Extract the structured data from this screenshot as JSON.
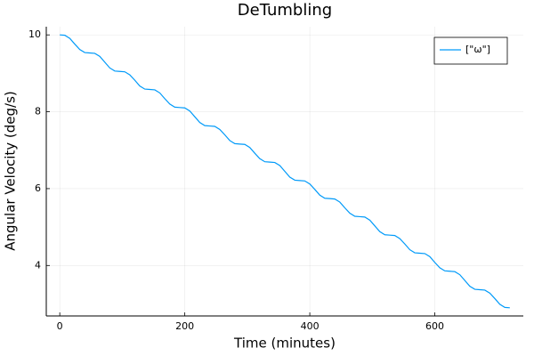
{
  "chart_data": {
    "type": "line",
    "title": "DeTumbling",
    "x_label": "Time (minutes)",
    "y_label": "Angular Velocity (deg/s)",
    "x": [
      0,
      8,
      16,
      24,
      32,
      40,
      48,
      56,
      64,
      72,
      80,
      88,
      96,
      104,
      112,
      120,
      128,
      136,
      144,
      152,
      160,
      168,
      176,
      184,
      192,
      200,
      208,
      216,
      224,
      232,
      240,
      248,
      256,
      264,
      272,
      280,
      288,
      296,
      304,
      312,
      320,
      328,
      336,
      344,
      352,
      360,
      368,
      376,
      384,
      392,
      400,
      408,
      416,
      424,
      432,
      440,
      448,
      456,
      464,
      472,
      480,
      488,
      496,
      504,
      512,
      520,
      528,
      536,
      544,
      552,
      560,
      568,
      576,
      584,
      592,
      600,
      608,
      616,
      624,
      632,
      640,
      648,
      656,
      664,
      672,
      680,
      688,
      696,
      704,
      712,
      720
    ],
    "series": [
      {
        "name": "[\"ω\"]",
        "color": "#009af9",
        "values": [
          10.0,
          9.99,
          9.91,
          9.76,
          9.62,
          9.54,
          9.53,
          9.52,
          9.44,
          9.29,
          9.14,
          9.06,
          9.05,
          9.04,
          8.96,
          8.82,
          8.67,
          8.59,
          8.58,
          8.57,
          8.49,
          8.34,
          8.2,
          8.12,
          8.11,
          8.1,
          8.02,
          7.87,
          7.72,
          7.64,
          7.63,
          7.62,
          7.54,
          7.4,
          7.25,
          7.17,
          7.16,
          7.15,
          7.07,
          6.92,
          6.78,
          6.7,
          6.69,
          6.68,
          6.6,
          6.45,
          6.3,
          6.22,
          6.21,
          6.2,
          6.12,
          5.98,
          5.83,
          5.75,
          5.74,
          5.73,
          5.65,
          5.5,
          5.36,
          5.28,
          5.27,
          5.26,
          5.18,
          5.03,
          4.88,
          4.8,
          4.79,
          4.78,
          4.7,
          4.56,
          4.41,
          4.33,
          4.32,
          4.31,
          4.23,
          4.08,
          3.94,
          3.86,
          3.85,
          3.84,
          3.76,
          3.61,
          3.46,
          3.38,
          3.37,
          3.36,
          3.28,
          3.14,
          2.99,
          2.91,
          2.9
        ]
      }
    ],
    "xlim": [
      -21.6,
      741.6
    ],
    "ylim": [
      2.687,
      10.213
    ],
    "xticks": [
      0,
      200,
      400,
      600
    ],
    "yticks": [
      4,
      6,
      8,
      10
    ],
    "grid": true,
    "legend": "top-right"
  }
}
